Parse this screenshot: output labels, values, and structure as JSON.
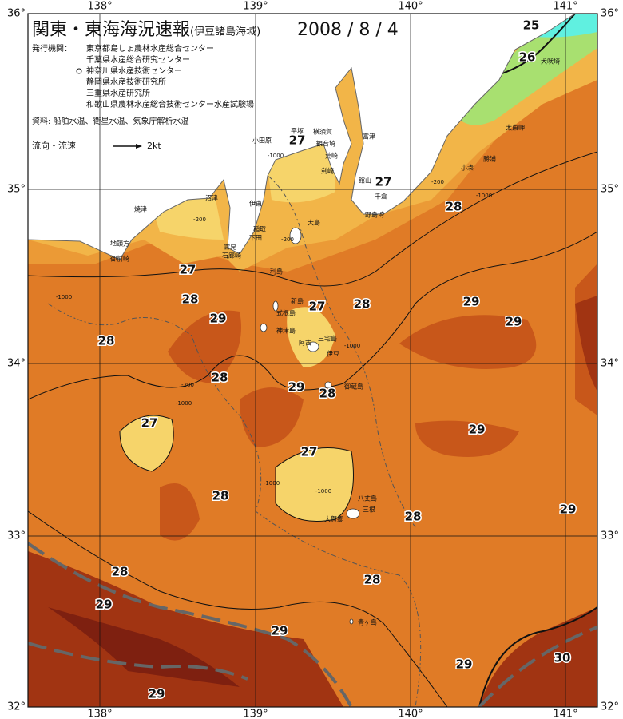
{
  "header": {
    "title": "関東・東海海況速報",
    "region": "(伊豆諸島海域)",
    "date": "2008 / 8 / 4"
  },
  "publisher": {
    "label": "発行機関：",
    "organizations": [
      "東京都島しょ農林水産総合センター",
      "千葉県水産総合研究センター",
      "神奈川県水産技術センター",
      "静岡県水産技術研究所",
      "三重県水産研究所",
      "和歌山県農林水産総合技術センター水産試験場"
    ]
  },
  "sources": "資料: 船舶水温、衛星水温、気象庁解析水温",
  "legend": {
    "label": "流向・流速",
    "speed": "2kt"
  },
  "axes": {
    "longitudes": [
      "138°",
      "139°",
      "140°",
      "141°"
    ],
    "latitudes": [
      "36°",
      "35°",
      "34°",
      "33°",
      "32°"
    ]
  },
  "isotherm_labels": [
    25,
    26,
    27,
    27,
    28,
    27,
    28,
    27,
    28,
    29,
    29,
    29,
    28,
    28,
    29,
    28,
    27,
    29,
    27,
    28,
    28,
    29,
    28,
    28,
    29,
    29,
    29,
    30,
    29
  ],
  "depth_labels": [
    "-1000",
    "-200",
    "-1000",
    "-200",
    "-200",
    "-1000",
    "-1000",
    "-200",
    "-1000",
    "-1000",
    "-1000"
  ],
  "places": [
    "犬吠埼",
    "太東岬",
    "勝浦",
    "小湊",
    "館山",
    "千倉",
    "野島埼",
    "富津",
    "観音埼",
    "横須賀",
    "平塚",
    "小田原",
    "荒崎",
    "剣崎",
    "伊東",
    "沼津",
    "焼津",
    "稲取",
    "下田",
    "雲見",
    "石廊崎",
    "地頭方",
    "御前崎",
    "大島",
    "利島",
    "新島",
    "式根島",
    "神津島",
    "三宅島",
    "阿古",
    "伊豆",
    "御蔵島",
    "八丈島",
    "三根",
    "大賀郷",
    "青ヶ島"
  ]
}
